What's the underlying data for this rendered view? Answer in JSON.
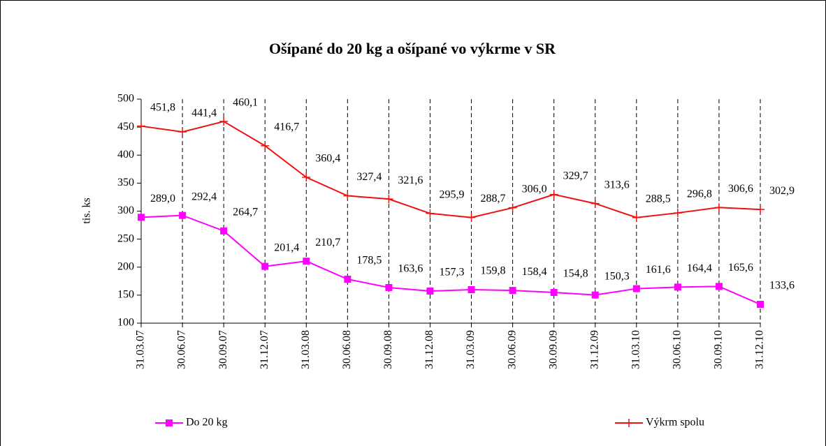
{
  "chart_data": {
    "type": "line",
    "title": "Ošípané do 20 kg a ošípané vo výkrme v SR",
    "y_label": "tis. ks",
    "categories": [
      "31.03.07",
      "30.06.07",
      "30.09.07",
      "31.12.07",
      "31.03.08",
      "30.06.08",
      "30.09.08",
      "31.12.08",
      "31.03.09",
      "30.06.09",
      "30.09.09",
      "31.12.09",
      "31.03.10",
      "30.06.10",
      "30.09.10",
      "31.12.10"
    ],
    "series": [
      {
        "name": "Do 20 kg",
        "color": "#ff00ff",
        "marker": "square",
        "values": [
          289.0,
          292.4,
          264.7,
          201.4,
          210.7,
          178.5,
          163.6,
          157.3,
          159.8,
          158.4,
          154.8,
          150.3,
          161.6,
          164.4,
          165.6,
          133.6
        ],
        "value_labels": [
          "289,0",
          "292,4",
          "264,7",
          "201,4",
          "210,7",
          "178,5",
          "163,6",
          "157,3",
          "159,8",
          "158,4",
          "154,8",
          "150,3",
          "161,6",
          "164,4",
          "165,6",
          "133,6"
        ]
      },
      {
        "name": "Výkrm spolu",
        "color": "#ee1111",
        "marker": "plus",
        "values": [
          451.8,
          441.4,
          460.1,
          416.7,
          360.4,
          327.4,
          321.6,
          295.9,
          288.7,
          306.0,
          329.7,
          313.6,
          288.5,
          296.8,
          306.6,
          302.9
        ],
        "value_labels": [
          "451,8",
          "441,4",
          "460,1",
          "416,7",
          "360,4",
          "327,4",
          "321,6",
          "295,9",
          "288,7",
          "306,0",
          "329,7",
          "313,6",
          "288,5",
          "296,8",
          "306,6",
          "302,9"
        ]
      }
    ],
    "ylim": [
      100,
      500
    ],
    "yticks": [
      100,
      150,
      200,
      250,
      300,
      350,
      400,
      450,
      500
    ],
    "grid": true,
    "legend": "bottom"
  }
}
